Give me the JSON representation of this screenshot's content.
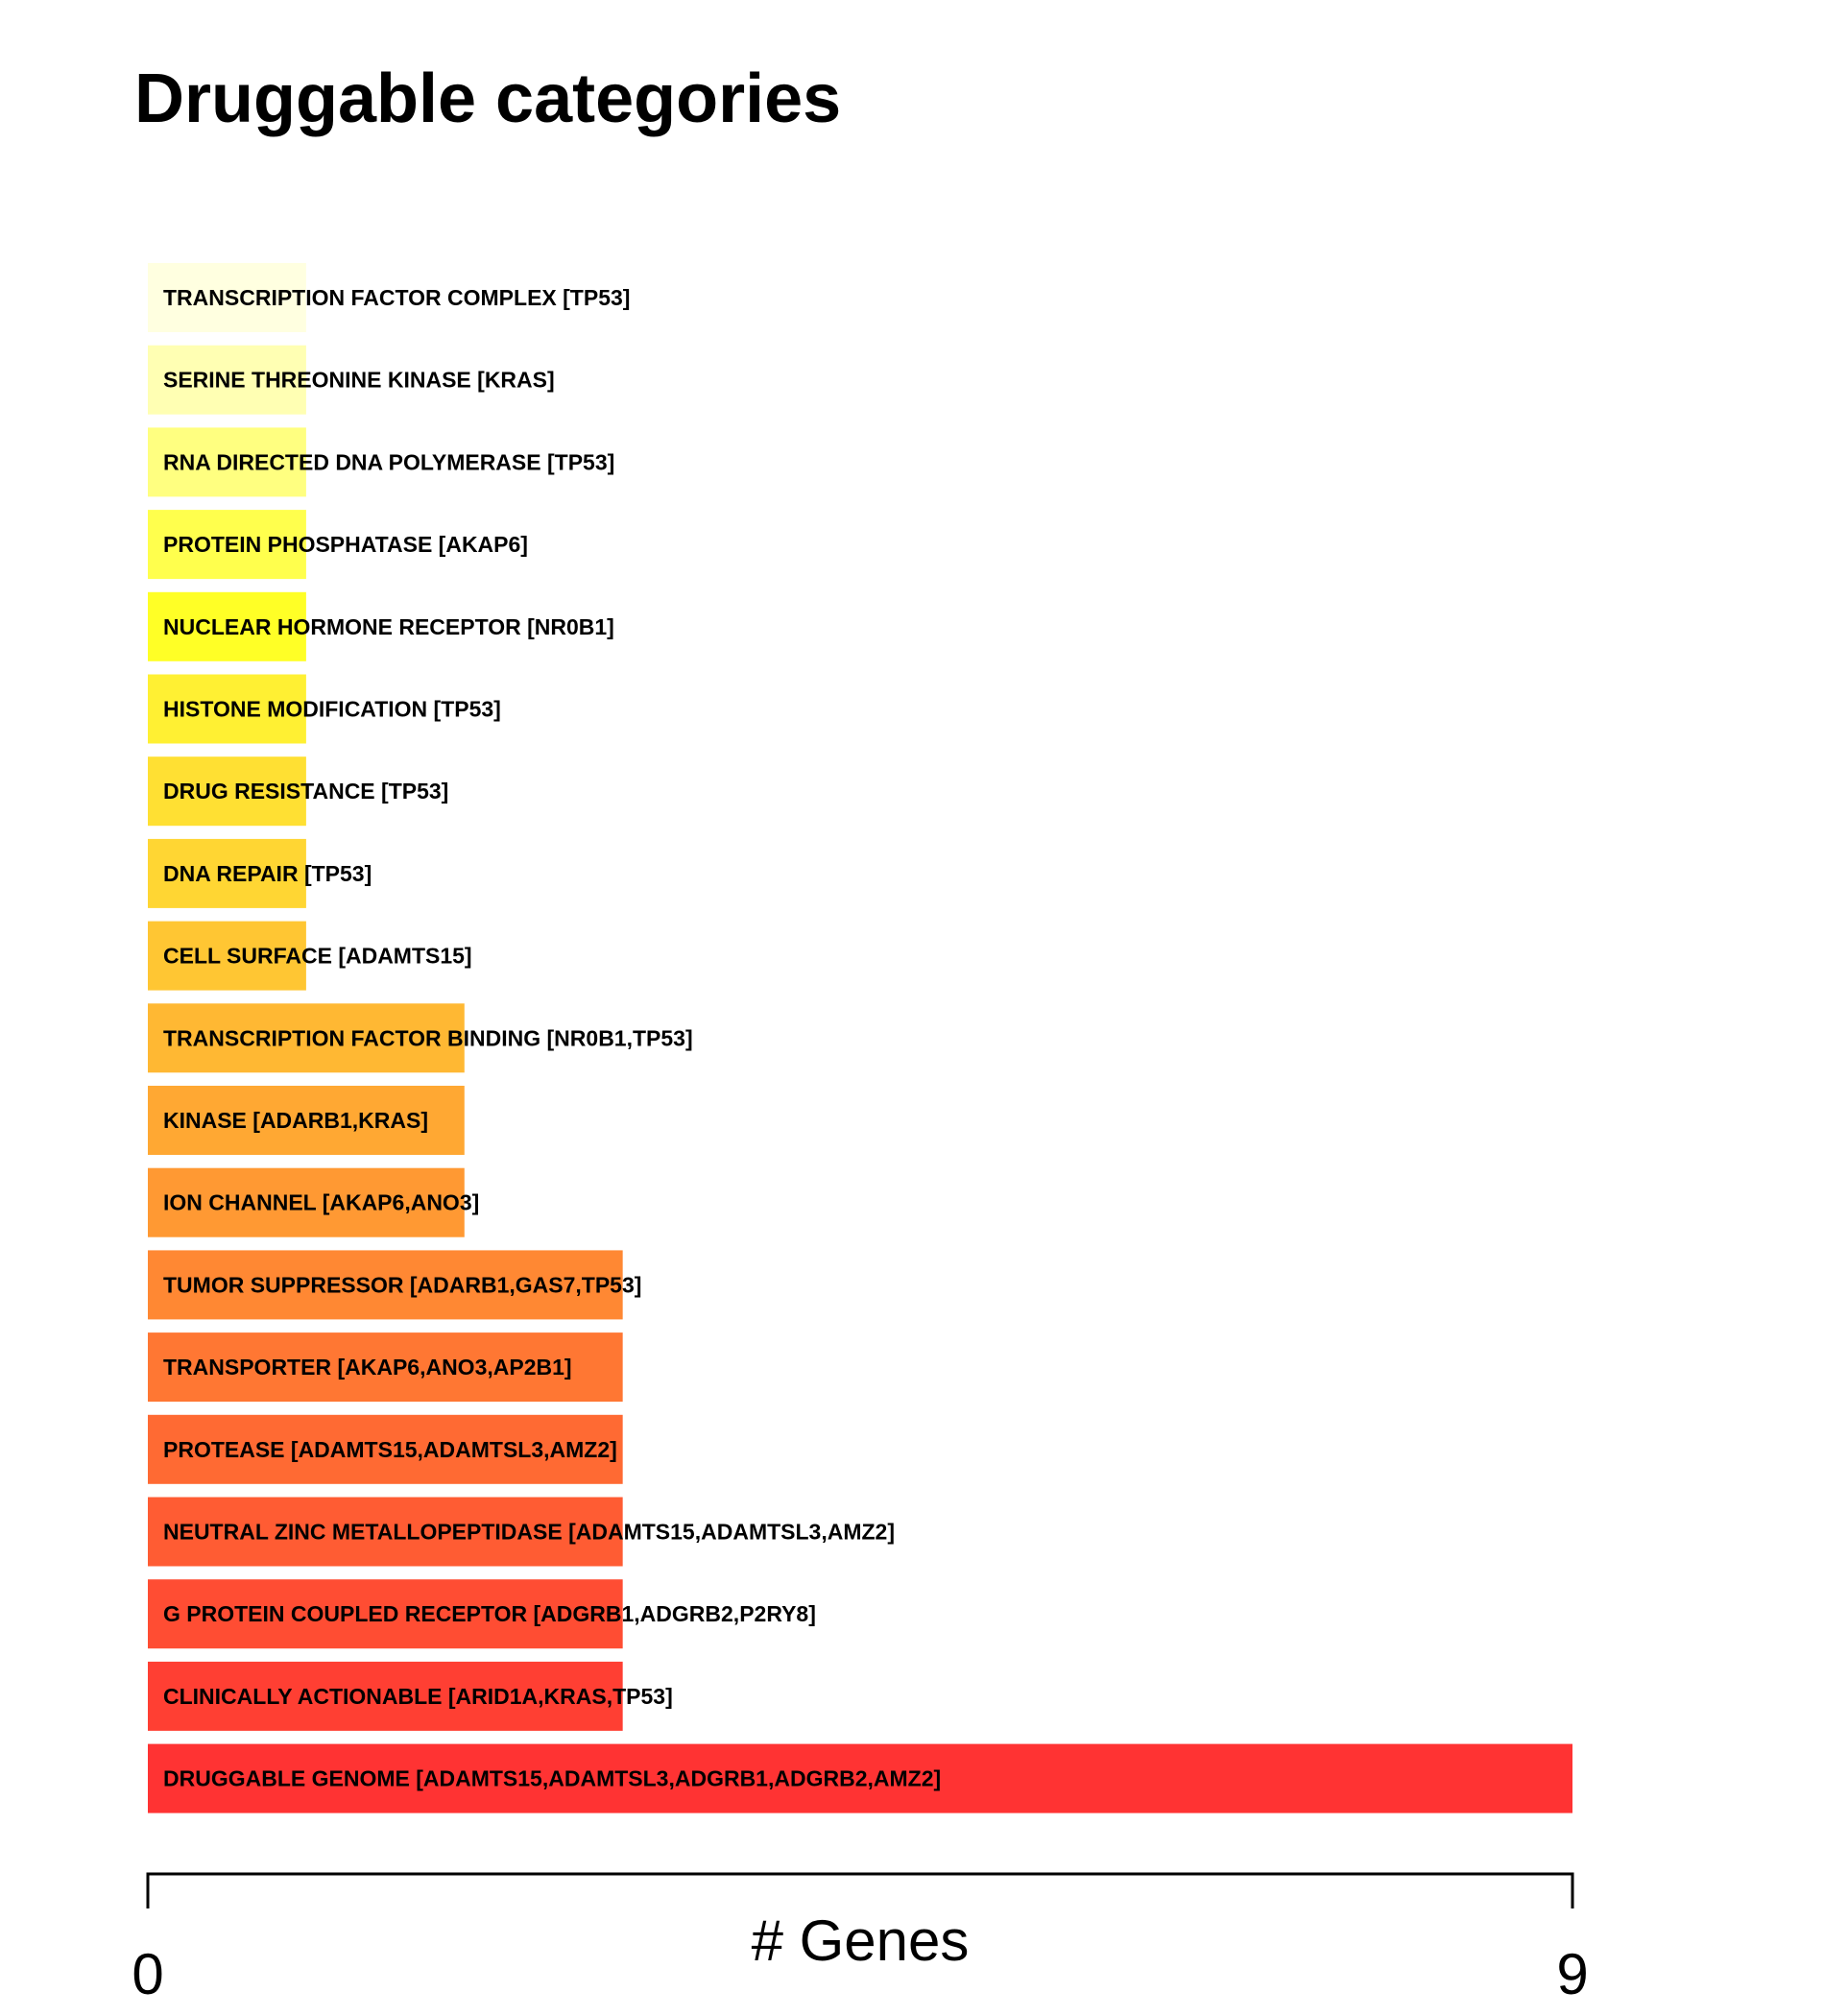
{
  "chart_data": {
    "type": "bar",
    "orientation": "horizontal",
    "title": "Druggable categories",
    "xlabel": "# Genes",
    "ylabel": "",
    "xlim": [
      0,
      9
    ],
    "x_ticks": [
      "0",
      "9"
    ],
    "grid": false,
    "legend": "none",
    "bars": [
      {
        "label": "TRANSCRIPTION FACTOR COMPLEX [TP53]",
        "value": 1,
        "color": "#FFFFE0"
      },
      {
        "label": "SERINE THREONINE KINASE [KRAS]",
        "value": 1,
        "color": "#FFFFB3"
      },
      {
        "label": "RNA DIRECTED DNA POLYMERASE [TP53]",
        "value": 1,
        "color": "#FFFF80"
      },
      {
        "label": "PROTEIN PHOSPHATASE [AKAP6]",
        "value": 1,
        "color": "#FFFF4D"
      },
      {
        "label": "NUCLEAR HORMONE RECEPTOR [NR0B1]",
        "value": 1,
        "color": "#FFFF26"
      },
      {
        "label": "HISTONE MODIFICATION [TP53]",
        "value": 1,
        "color": "#FFF033"
      },
      {
        "label": "DRUG RESISTANCE [TP53]",
        "value": 1,
        "color": "#FFE033"
      },
      {
        "label": "DNA REPAIR [TP53]",
        "value": 1,
        "color": "#FFD633"
      },
      {
        "label": "CELL SURFACE [ADAMTS15]",
        "value": 1,
        "color": "#FFC633"
      },
      {
        "label": "TRANSCRIPTION FACTOR BINDING [NR0B1,TP53]",
        "value": 2,
        "color": "#FFB833"
      },
      {
        "label": "KINASE [ADARB1,KRAS]",
        "value": 2,
        "color": "#FFA833"
      },
      {
        "label": "ION CHANNEL [AKAP6,ANO3]",
        "value": 2,
        "color": "#FF9933"
      },
      {
        "label": "TUMOR SUPPRESSOR [ADARB1,GAS7,TP53]",
        "value": 3,
        "color": "#FF8833"
      },
      {
        "label": "TRANSPORTER [AKAP6,ANO3,AP2B1]",
        "value": 3,
        "color": "#FF7733"
      },
      {
        "label": "PROTEASE [ADAMTS15,ADAMTSL3,AMZ2]",
        "value": 3,
        "color": "#FF6A33"
      },
      {
        "label": "NEUTRAL ZINC METALLOPEPTIDASE [ADAMTS15,ADAMTSL3,AMZ2]",
        "value": 3,
        "color": "#FF5C33"
      },
      {
        "label": "G PROTEIN COUPLED RECEPTOR [ADGRB1,ADGRB2,P2RY8]",
        "value": 3,
        "color": "#FF4D33"
      },
      {
        "label": "CLINICALLY ACTIONABLE [ARID1A,KRAS,TP53]",
        "value": 3,
        "color": "#FF3F33"
      },
      {
        "label": "DRUGGABLE GENOME [ADAMTS15,ADAMTSL3,ADGRB1,ADGRB2,AMZ2]",
        "value": 9,
        "color": "#FF3333"
      }
    ]
  }
}
